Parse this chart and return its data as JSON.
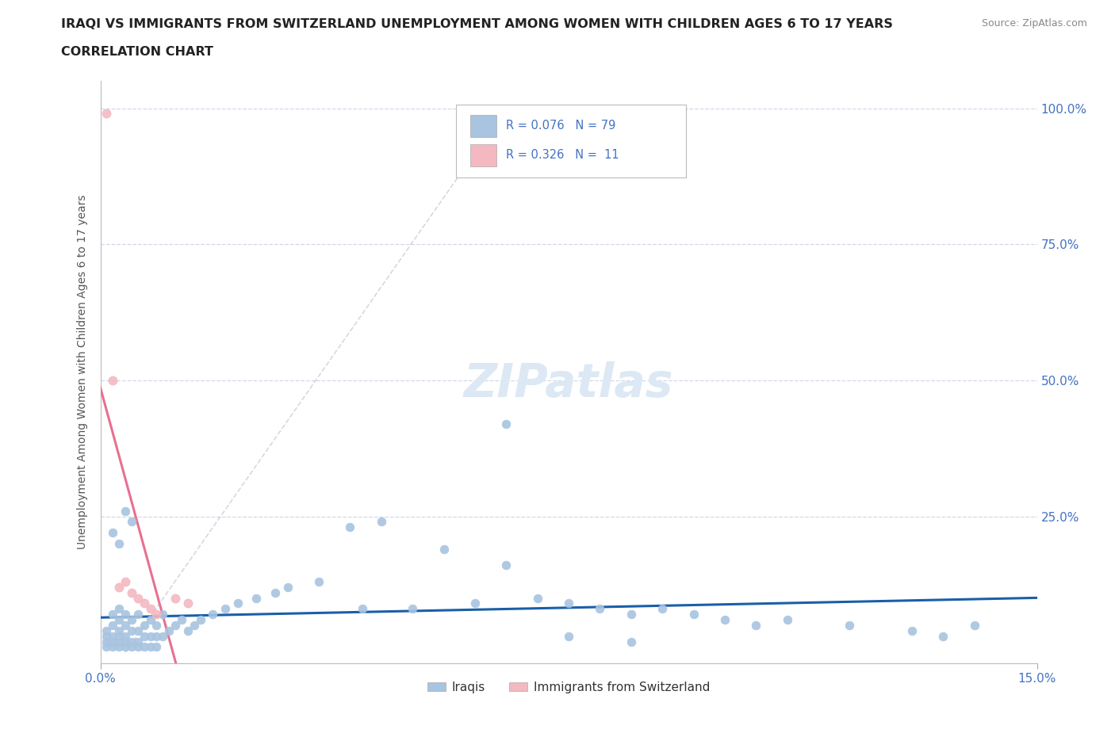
{
  "title_line1": "IRAQI VS IMMIGRANTS FROM SWITZERLAND UNEMPLOYMENT AMONG WOMEN WITH CHILDREN AGES 6 TO 17 YEARS",
  "title_line2": "CORRELATION CHART",
  "source_text": "Source: ZipAtlas.com",
  "ylabel": "Unemployment Among Women with Children Ages 6 to 17 years",
  "xlim": [
    0.0,
    0.15
  ],
  "ylim": [
    -0.02,
    1.05
  ],
  "ytick_values": [
    0.25,
    0.5,
    0.75,
    1.0
  ],
  "right_ytick_labels": [
    "25.0%",
    "50.0%",
    "75.0%",
    "100.0%"
  ],
  "iraqis_color": "#a8c4e0",
  "swiss_color": "#f4b8c1",
  "trendline_iraqis_color": "#1a5fa8",
  "trendline_swiss_color": "#e87090",
  "trendline_diagonal_color": "#c8c8d0",
  "background_color": "#ffffff",
  "grid_color": "#d0d8e8",
  "watermark_color": "#dde8f5",
  "title_color": "#222222",
  "legend_iraqis_label": "Iraqis",
  "legend_swiss_label": "Immigrants from Switzerland",
  "iraqis_x": [
    0.001,
    0.001,
    0.001,
    0.002,
    0.002,
    0.002,
    0.002,
    0.003,
    0.003,
    0.003,
    0.003,
    0.003,
    0.004,
    0.004,
    0.004,
    0.004,
    0.005,
    0.005,
    0.005,
    0.006,
    0.006,
    0.006,
    0.007,
    0.007,
    0.008,
    0.008,
    0.009,
    0.009,
    0.01,
    0.01,
    0.011,
    0.012,
    0.013,
    0.014,
    0.015,
    0.016,
    0.018,
    0.02,
    0.022,
    0.025,
    0.028,
    0.03,
    0.035,
    0.04,
    0.042,
    0.045,
    0.05,
    0.055,
    0.06,
    0.065,
    0.07,
    0.075,
    0.08,
    0.085,
    0.09,
    0.095,
    0.1,
    0.105,
    0.11,
    0.12,
    0.001,
    0.002,
    0.003,
    0.004,
    0.005,
    0.006,
    0.007,
    0.008,
    0.009,
    0.002,
    0.003,
    0.004,
    0.005,
    0.065,
    0.075,
    0.085,
    0.13,
    0.135,
    0.14
  ],
  "iraqis_y": [
    0.02,
    0.03,
    0.04,
    0.02,
    0.03,
    0.05,
    0.07,
    0.02,
    0.03,
    0.04,
    0.06,
    0.08,
    0.02,
    0.03,
    0.05,
    0.07,
    0.02,
    0.04,
    0.06,
    0.02,
    0.04,
    0.07,
    0.03,
    0.05,
    0.03,
    0.06,
    0.03,
    0.05,
    0.03,
    0.07,
    0.04,
    0.05,
    0.06,
    0.04,
    0.05,
    0.06,
    0.07,
    0.08,
    0.09,
    0.1,
    0.11,
    0.12,
    0.13,
    0.23,
    0.08,
    0.24,
    0.08,
    0.19,
    0.09,
    0.16,
    0.1,
    0.09,
    0.08,
    0.07,
    0.08,
    0.07,
    0.06,
    0.05,
    0.06,
    0.05,
    0.01,
    0.01,
    0.01,
    0.01,
    0.01,
    0.01,
    0.01,
    0.01,
    0.01,
    0.22,
    0.2,
    0.26,
    0.24,
    0.42,
    0.03,
    0.02,
    0.04,
    0.03,
    0.05
  ],
  "swiss_x": [
    0.001,
    0.002,
    0.003,
    0.004,
    0.005,
    0.006,
    0.007,
    0.008,
    0.009,
    0.012,
    0.014
  ],
  "swiss_y": [
    0.99,
    0.5,
    0.12,
    0.13,
    0.11,
    0.1,
    0.09,
    0.08,
    0.07,
    0.1,
    0.09
  ]
}
